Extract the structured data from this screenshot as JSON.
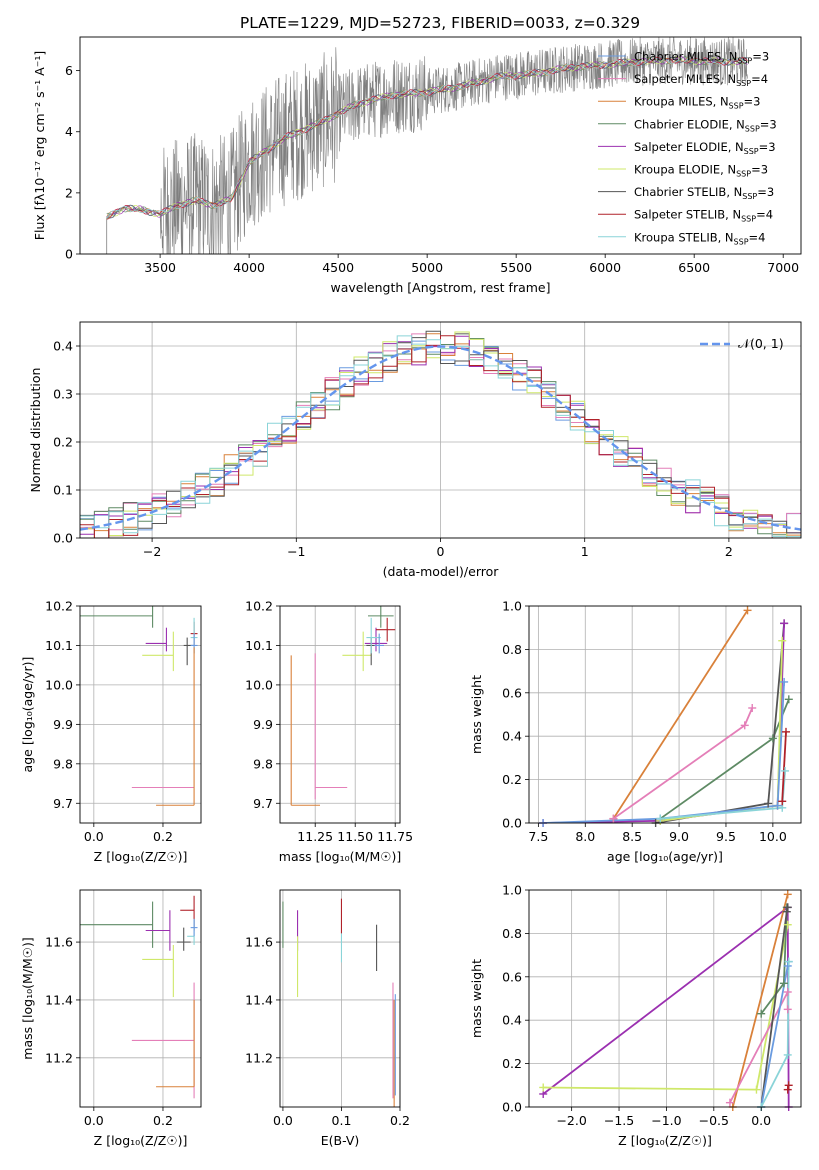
{
  "figure_title": "PLATE=1229, MJD=52723, FIBERID=0033, z=0.329",
  "colors": {
    "Chabrier MILES": "#6a9be0",
    "Salpeter MILES": "#e47fb8",
    "Kroupa MILES": "#d9813a",
    "Chabrier ELODIE": "#5e8a64",
    "Salpeter ELODIE": "#9b30b0",
    "Kroupa ELODIE": "#cfe86a",
    "Chabrier STELIB": "#555555",
    "Salpeter STELIB": "#b0222a",
    "Kroupa STELIB": "#8ad4d8",
    "data_grey": "#7f7f7f",
    "gaussian": "#6495ed"
  },
  "chart_data": [
    {
      "id": "spectrum",
      "type": "line",
      "xlabel": "wavelength [Angstrom, rest frame]",
      "ylabel": "Flux [fλ10⁻¹⁷ erg cm⁻² s⁻¹ A⁻¹]",
      "xlim": [
        3050,
        7100
      ],
      "ylim": [
        0,
        7.1
      ],
      "xticks": [
        3500,
        4000,
        4500,
        5000,
        5500,
        6000,
        6500,
        7000
      ],
      "yticks": [
        0,
        2,
        4,
        6
      ],
      "grid": false,
      "legend_position": "right",
      "legend": [
        "Chabrier MILES, N_SSP=3",
        "Salpeter MILES, N_SSP=4",
        "Kroupa MILES, N_SSP=3",
        "Chabrier ELODIE, N_SSP=3",
        "Salpeter ELODIE, N_SSP=3",
        "Kroupa ELODIE, N_SSP=3",
        "Chabrier STELIB, N_SSP=3",
        "Salpeter STELIB, N_SSP=4",
        "Kroupa STELIB, N_SSP=4"
      ],
      "data_range": [
        3200,
        6800
      ],
      "continuum": [
        [
          3200,
          1.2
        ],
        [
          3300,
          1.5
        ],
        [
          3400,
          1.45
        ],
        [
          3500,
          1.3
        ],
        [
          3600,
          1.6
        ],
        [
          3700,
          1.75
        ],
        [
          3800,
          1.6
        ],
        [
          3900,
          1.8
        ],
        [
          4000,
          3.0
        ],
        [
          4200,
          3.8
        ],
        [
          4400,
          4.3
        ],
        [
          4600,
          4.9
        ],
        [
          4800,
          5.2
        ],
        [
          5000,
          5.3
        ],
        [
          5200,
          5.5
        ],
        [
          5400,
          5.8
        ],
        [
          5600,
          5.9
        ],
        [
          5800,
          6.1
        ],
        [
          6000,
          6.2
        ],
        [
          6200,
          6.3
        ],
        [
          6400,
          6.35
        ],
        [
          6600,
          6.3
        ],
        [
          6800,
          6.3
        ],
        [
          7000,
          6.3
        ]
      ]
    },
    {
      "id": "residuals",
      "type": "line",
      "xlabel": "(data-model)/error",
      "ylabel": "Normed distribution",
      "xlim": [
        -2.5,
        2.5
      ],
      "ylim": [
        0,
        0.45
      ],
      "xticks": [
        -2,
        -1,
        0,
        1,
        2
      ],
      "yticks": [
        0.0,
        0.1,
        0.2,
        0.3,
        0.4
      ],
      "grid": true,
      "legend_position": "top-right",
      "legend": [
        "𝒩(0, 1)"
      ],
      "gaussian": {
        "mu": 0,
        "sigma": 1
      }
    },
    {
      "id": "age_vs_Z",
      "type": "scatter",
      "xlabel": "Z [log₁₀(Z/Z☉)]",
      "ylabel": "age  [log₁₀(age/yr)]",
      "xlim": [
        -0.04,
        0.31
      ],
      "ylim": [
        9.65,
        10.2
      ],
      "xticks": [
        0.0,
        0.2
      ],
      "yticks": [
        9.7,
        9.8,
        9.9,
        10.0,
        10.1,
        10.2
      ],
      "grid": true,
      "points": [
        {
          "m": "Chabrier ELODIE",
          "x": 0.17,
          "xerr": [
            0.21,
            0.0
          ],
          "y": 10.175,
          "yerr": [
            0.03,
            0.03
          ]
        },
        {
          "m": "Salpeter ELODIE",
          "x": 0.21,
          "xerr": [
            0.06,
            0.0
          ],
          "y": 10.105,
          "yerr": [
            0.02,
            0.04
          ]
        },
        {
          "m": "Kroupa ELODIE",
          "x": 0.23,
          "xerr": [
            0.09,
            0.0
          ],
          "y": 10.075,
          "yerr": [
            0.04,
            0.06
          ]
        },
        {
          "m": "Chabrier STELIB",
          "x": 0.27,
          "xerr": [
            0.01,
            0.02
          ],
          "y": 10.1,
          "yerr": [
            0.05,
            0.02
          ]
        },
        {
          "m": "Salpeter STELIB",
          "x": 0.29,
          "xerr": [
            0.01,
            0.01
          ],
          "y": 10.13,
          "yerr": [
            0.03,
            0.03
          ]
        },
        {
          "m": "Kroupa STELIB",
          "x": 0.29,
          "xerr": [
            0.01,
            0.01
          ],
          "y": 10.12,
          "yerr": [
            0.04,
            0.05
          ]
        },
        {
          "m": "Chabrier MILES",
          "x": 0.29,
          "xerr": [
            0.01,
            0.01
          ],
          "y": 10.1,
          "yerr": [
            0.02,
            0.03
          ]
        },
        {
          "m": "Salpeter MILES",
          "x": 0.29,
          "xerr": [
            0.18,
            0.0
          ],
          "y": 9.74,
          "yerr": [
            0.0,
            0.0
          ]
        },
        {
          "m": "Kroupa MILES",
          "x": 0.29,
          "xerr": [
            0.11,
            0.0
          ],
          "y": 9.695,
          "yerr": [
            0.0,
            0.4
          ]
        }
      ]
    },
    {
      "id": "age_vs_mass",
      "type": "scatter",
      "xlabel": "mass [log₁₀(M/M☉)]",
      "ylabel": "",
      "xlim": [
        11.03,
        11.78
      ],
      "ylim": [
        9.65,
        10.2
      ],
      "xticks": [
        11.25,
        11.5,
        11.75
      ],
      "yticks": [
        9.7,
        9.8,
        9.9,
        10.0,
        10.1,
        10.2
      ],
      "grid": true,
      "points": [
        {
          "m": "Chabrier ELODIE",
          "x": 11.66,
          "xerr": [
            0.08,
            0.08
          ],
          "y": 10.175,
          "yerr": [
            0.03,
            0.03
          ]
        },
        {
          "m": "Salpeter ELODIE",
          "x": 11.63,
          "xerr": [
            0.07,
            0.07
          ],
          "y": 10.105,
          "yerr": [
            0.02,
            0.04
          ]
        },
        {
          "m": "Kroupa ELODIE",
          "x": 11.55,
          "xerr": [
            0.13,
            0.05
          ],
          "y": 10.075,
          "yerr": [
            0.04,
            0.06
          ]
        },
        {
          "m": "Chabrier STELIB",
          "x": 11.6,
          "xerr": [
            0.03,
            0.05
          ],
          "y": 10.1,
          "yerr": [
            0.05,
            0.02
          ]
        },
        {
          "m": "Salpeter STELIB",
          "x": 11.7,
          "xerr": [
            0.07,
            0.05
          ],
          "y": 10.14,
          "yerr": [
            0.03,
            0.03
          ]
        },
        {
          "m": "Kroupa STELIB",
          "x": 11.6,
          "xerr": [
            0.03,
            0.06
          ],
          "y": 10.12,
          "yerr": [
            0.04,
            0.05
          ]
        },
        {
          "m": "Chabrier MILES",
          "x": 11.65,
          "xerr": [
            0.03,
            0.03
          ],
          "y": 10.1,
          "yerr": [
            0.02,
            0.03
          ]
        },
        {
          "m": "Salpeter MILES",
          "x": 11.25,
          "xerr": [
            0.0,
            0.2
          ],
          "y": 9.74,
          "yerr": [
            0.03,
            0.34
          ]
        },
        {
          "m": "Kroupa MILES",
          "x": 11.1,
          "xerr": [
            0.0,
            0.18
          ],
          "y": 9.695,
          "yerr": [
            0.0,
            0.38
          ]
        }
      ]
    },
    {
      "id": "weight_vs_age",
      "type": "line",
      "xlabel": "age  [log₁₀(age/yr)]",
      "ylabel": "mass weight",
      "xlim": [
        7.4,
        10.3
      ],
      "ylim": [
        0,
        1
      ],
      "xticks": [
        7.5,
        8.0,
        8.5,
        9.0,
        9.5,
        10.0
      ],
      "yticks": [
        0.0,
        0.2,
        0.4,
        0.6,
        0.8,
        1.0
      ],
      "grid": true,
      "series": [
        {
          "m": "Kroupa MILES",
          "x": [
            8.3,
            9.73
          ],
          "y": [
            0.02,
            0.98
          ]
        },
        {
          "m": "Salpeter MILES",
          "x": [
            8.3,
            9.7,
            9.78
          ],
          "y": [
            0.02,
            0.45,
            0.53
          ]
        },
        {
          "m": "Chabrier ELODIE",
          "x": [
            8.8,
            10.0,
            10.17
          ],
          "y": [
            0.02,
            0.39,
            0.57
          ]
        },
        {
          "m": "Chabrier STELIB",
          "x": [
            8.75,
            9.95,
            10.12
          ],
          "y": [
            0.0,
            0.09,
            0.92
          ]
        },
        {
          "m": "Salpeter ELODIE",
          "x": [
            7.55,
            8.8,
            10.05,
            10.12
          ],
          "y": [
            0.0,
            0.01,
            0.08,
            0.92
          ]
        },
        {
          "m": "Kroupa ELODIE",
          "x": [
            8.8,
            10.05,
            10.1
          ],
          "y": [
            0.01,
            0.08,
            0.84
          ]
        },
        {
          "m": "Chabrier MILES",
          "x": [
            7.55,
            8.8,
            10.05,
            10.12
          ],
          "y": [
            0.0,
            0.02,
            0.08,
            0.65
          ]
        },
        {
          "m": "Kroupa STELIB",
          "x": [
            8.8,
            10.1,
            10.13
          ],
          "y": [
            0.02,
            0.07,
            0.24
          ]
        },
        {
          "m": "Salpeter STELIB",
          "x": [
            10.1,
            10.14
          ],
          "y": [
            0.1,
            0.42
          ]
        }
      ]
    },
    {
      "id": "mass_vs_Z",
      "type": "scatter",
      "xlabel": "Z [log₁₀(Z/Z☉)]",
      "ylabel": "mass [log₁₀(M/M☉)]",
      "xlim": [
        -0.04,
        0.31
      ],
      "ylim": [
        11.03,
        11.78
      ],
      "xticks": [
        0.0,
        0.2
      ],
      "yticks": [
        11.2,
        11.4,
        11.6
      ],
      "grid": true,
      "points": [
        {
          "m": "Chabrier ELODIE",
          "x": 0.17,
          "xerr": [
            0.21,
            0.0
          ],
          "y": 11.66,
          "yerr": [
            0.08,
            0.08
          ]
        },
        {
          "m": "Salpeter ELODIE",
          "x": 0.22,
          "xerr": [
            0.07,
            0.0
          ],
          "y": 11.64,
          "yerr": [
            0.07,
            0.07
          ]
        },
        {
          "m": "Kroupa ELODIE",
          "x": 0.23,
          "xerr": [
            0.09,
            0.0
          ],
          "y": 11.54,
          "yerr": [
            0.13,
            0.05
          ]
        },
        {
          "m": "Chabrier STELIB",
          "x": 0.26,
          "xerr": [
            0.02,
            0.02
          ],
          "y": 11.6,
          "yerr": [
            0.03,
            0.05
          ]
        },
        {
          "m": "Salpeter STELIB",
          "x": 0.29,
          "xerr": [
            0.04,
            0.0
          ],
          "y": 11.71,
          "yerr": [
            0.07,
            0.05
          ]
        },
        {
          "m": "Kroupa STELIB",
          "x": 0.29,
          "xerr": [
            0.02,
            0.0
          ],
          "y": 11.62,
          "yerr": [
            0.03,
            0.06
          ]
        },
        {
          "m": "Chabrier MILES",
          "x": 0.29,
          "xerr": [
            0.01,
            0.01
          ],
          "y": 11.65,
          "yerr": [
            0.03,
            0.03
          ]
        },
        {
          "m": "Salpeter MILES",
          "x": 0.29,
          "xerr": [
            0.18,
            0.0
          ],
          "y": 11.26,
          "yerr": [
            0.2,
            0.2
          ]
        },
        {
          "m": "Kroupa MILES",
          "x": 0.29,
          "xerr": [
            0.11,
            0.0
          ],
          "y": 11.1,
          "yerr": [
            0.0,
            0.3
          ]
        }
      ]
    },
    {
      "id": "mass_vs_ebv",
      "type": "scatter",
      "xlabel": "E(B-V)",
      "ylabel": "",
      "xlim": [
        -0.005,
        0.2
      ],
      "ylim": [
        11.03,
        11.78
      ],
      "xticks": [
        0.0,
        0.1,
        0.2
      ],
      "yticks": [
        11.2,
        11.4,
        11.6
      ],
      "grid": true,
      "points": [
        {
          "m": "Chabrier ELODIE",
          "x": 0.0,
          "xerr": [
            0,
            0
          ],
          "y": 11.66,
          "yerr": [
            0.08,
            0.08
          ]
        },
        {
          "m": "Salpeter ELODIE",
          "x": 0.025,
          "xerr": [
            0,
            0
          ],
          "y": 11.64,
          "yerr": [
            0.07,
            0.07
          ]
        },
        {
          "m": "Kroupa ELODIE",
          "x": 0.025,
          "xerr": [
            0,
            0
          ],
          "y": 11.54,
          "yerr": [
            0.13,
            0.08
          ]
        },
        {
          "m": "Salpeter STELIB",
          "x": 0.1,
          "xerr": [
            0,
            0
          ],
          "y": 11.7,
          "yerr": [
            0.07,
            0.05
          ]
        },
        {
          "m": "Kroupa STELIB",
          "x": 0.1,
          "xerr": [
            0,
            0
          ],
          "y": 11.6,
          "yerr": [
            0.07,
            0.03
          ]
        },
        {
          "m": "Chabrier STELIB",
          "x": 0.16,
          "xerr": [
            0,
            0
          ],
          "y": 11.6,
          "yerr": [
            0.1,
            0.06
          ]
        },
        {
          "m": "Salpeter MILES",
          "x": 0.188,
          "xerr": [
            0,
            0
          ],
          "y": 11.26,
          "yerr": [
            0.2,
            0.2
          ]
        },
        {
          "m": "Kroupa MILES",
          "x": 0.19,
          "xerr": [
            0,
            0
          ],
          "y": 11.1,
          "yerr": [
            0.07,
            0.3
          ]
        },
        {
          "m": "Chabrier MILES",
          "x": 0.192,
          "xerr": [
            0,
            0
          ],
          "y": 11.25,
          "yerr": [
            0.18,
            0.17
          ]
        }
      ]
    },
    {
      "id": "weight_vs_Z",
      "type": "line",
      "xlabel": "Z [log₁₀(Z/Z☉)]",
      "ylabel": "mass weight",
      "xlim": [
        -2.45,
        0.42
      ],
      "ylim": [
        0,
        1
      ],
      "xticks": [
        -2.0,
        -1.5,
        -1.0,
        -0.5,
        0.0
      ],
      "yticks": [
        0.0,
        0.2,
        0.4,
        0.6,
        0.8,
        1.0
      ],
      "grid": true,
      "series": [
        {
          "m": "Salpeter ELODIE",
          "x": [
            -2.3,
            0.28,
            0.29
          ],
          "y": [
            0.06,
            0.92,
            0.0
          ]
        },
        {
          "m": "Kroupa ELODIE",
          "x": [
            -2.3,
            -0.05,
            0.28
          ],
          "y": [
            0.09,
            0.08,
            0.84
          ]
        },
        {
          "m": "Kroupa MILES",
          "x": [
            -0.3,
            0.28
          ],
          "y": [
            0.0,
            0.98
          ]
        },
        {
          "m": "Salpeter MILES",
          "x": [
            -0.33,
            0.28,
            0.28
          ],
          "y": [
            0.02,
            0.53,
            0.45
          ]
        },
        {
          "m": "Chabrier ELODIE",
          "x": [
            0.0,
            0.24,
            0.27
          ],
          "y": [
            0.43,
            0.57,
            0.92
          ]
        },
        {
          "m": "Chabrier STELIB",
          "x": [
            0.0,
            0.27,
            0.28
          ],
          "y": [
            0.0,
            0.9,
            0.92
          ]
        },
        {
          "m": "Chabrier MILES",
          "x": [
            0.0,
            0.28,
            0.29
          ],
          "y": [
            0.0,
            0.65,
            0.67
          ]
        },
        {
          "m": "Kroupa STELIB",
          "x": [
            0.0,
            0.28,
            0.29
          ],
          "y": [
            0.0,
            0.24,
            0.67
          ]
        },
        {
          "m": "Salpeter STELIB",
          "x": [
            0.28,
            0.29
          ],
          "y": [
            0.08,
            0.1
          ]
        }
      ]
    }
  ]
}
